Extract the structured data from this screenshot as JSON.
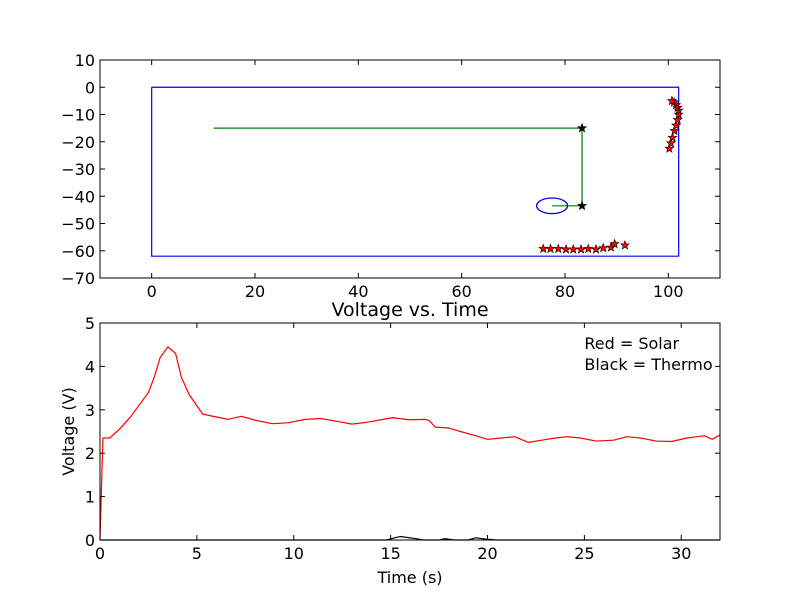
{
  "chart_data": [
    {
      "type": "scatter",
      "title": "",
      "xlabel": "",
      "ylabel": "",
      "xlim": [
        -10,
        110
      ],
      "ylim": [
        -70,
        10
      ],
      "xticks": [
        "0",
        "20",
        "40",
        "60",
        "80",
        "100"
      ],
      "yticks": [
        "10",
        "0",
        "−10",
        "−20",
        "−30",
        "−40",
        "−50",
        "−60",
        "−70"
      ],
      "xtick_values": [
        0,
        20,
        40,
        60,
        80,
        100
      ],
      "ytick_values": [
        10,
        0,
        -10,
        -20,
        -30,
        -40,
        -50,
        -60,
        -70
      ],
      "boundary": {
        "x": [
          0,
          102,
          102,
          0,
          0
        ],
        "y": [
          0,
          0,
          -62,
          -62,
          0
        ],
        "color": "#0000ff"
      },
      "path": {
        "x": [
          12,
          83.3,
          83.3,
          77.5
        ],
        "y": [
          -15,
          -15,
          -43.5,
          -43.5
        ],
        "color": "#008000"
      },
      "path_markers": {
        "x": [
          83.3,
          83.3
        ],
        "y": [
          -15,
          -43.5
        ],
        "color": "#000000"
      },
      "ellipse": {
        "cx": 77.5,
        "cy": -43.5,
        "rx": 3,
        "ry": 3,
        "color": "#0000ff"
      },
      "stars": {
        "color": "#ff0000",
        "x": [
          75.8,
          77.2,
          78.7,
          80.2,
          81.6,
          83.1,
          84.5,
          86.0,
          87.4,
          88.9,
          89.6,
          91.6,
          100.2,
          100.5,
          100.8,
          101.2,
          101.5,
          101.8,
          102.0,
          102.0,
          101.8,
          101.5,
          101.1,
          100.7
        ],
        "y": [
          -59.3,
          -59.3,
          -59.3,
          -59.5,
          -59.5,
          -59.5,
          -59.3,
          -59.5,
          -59.0,
          -58.8,
          -57.5,
          -58.0,
          -22.5,
          -20.5,
          -18.5,
          -16.0,
          -14.0,
          -12.0,
          -10.0,
          -8.5,
          -7.5,
          -6.5,
          -5.5,
          -5.0
        ]
      }
    },
    {
      "type": "line",
      "title": "Voltage vs. Time",
      "xlabel": "Time (s)",
      "ylabel": "Voltage (V)",
      "xlim": [
        0,
        32
      ],
      "ylim": [
        0,
        5
      ],
      "xticks": [
        "0",
        "5",
        "10",
        "15",
        "20",
        "25",
        "30"
      ],
      "yticks": [
        "0",
        "1",
        "2",
        "3",
        "4",
        "5"
      ],
      "xtick_values": [
        0,
        5,
        10,
        15,
        20,
        25,
        30
      ],
      "ytick_values": [
        0,
        1,
        2,
        3,
        4,
        5
      ],
      "annotations": [
        "Red = Solar",
        "Black = Thermo"
      ],
      "series": [
        {
          "color": "#ff0000",
          "x": [
            0,
            0.15,
            0.5,
            1.0,
            1.6,
            2.5,
            2.8,
            3.1,
            3.5,
            3.9,
            4.2,
            4.6,
            5.3,
            6.6,
            7.3,
            8.1,
            8.9,
            9.7,
            10.6,
            11.4,
            12.4,
            13.0,
            13.9,
            14.6,
            15.1,
            15.9,
            16.8,
            17.0,
            17.3,
            18.0,
            18.6,
            19.4,
            20.0,
            20.7,
            21.4,
            22.1,
            22.8,
            23.5,
            24.1,
            24.8,
            25.6,
            26.5,
            27.2,
            27.9,
            28.7,
            29.5,
            30.3,
            30.8,
            31.2,
            31.6,
            32.0
          ],
          "y": [
            0,
            2.35,
            2.35,
            2.55,
            2.85,
            3.4,
            3.75,
            4.2,
            4.45,
            4.3,
            3.75,
            3.35,
            2.9,
            2.78,
            2.85,
            2.75,
            2.68,
            2.7,
            2.78,
            2.8,
            2.72,
            2.67,
            2.72,
            2.78,
            2.82,
            2.77,
            2.78,
            2.75,
            2.6,
            2.58,
            2.5,
            2.4,
            2.32,
            2.35,
            2.38,
            2.25,
            2.3,
            2.35,
            2.38,
            2.35,
            2.28,
            2.3,
            2.38,
            2.35,
            2.28,
            2.27,
            2.35,
            2.38,
            2.4,
            2.32,
            2.42
          ]
        },
        {
          "color": "#000000",
          "x": [
            0,
            14.8,
            15.2,
            15.5,
            16.3,
            16.7,
            17.5,
            17.8,
            18.3,
            19.0,
            19.4,
            19.9,
            20.5,
            32
          ],
          "y": [
            0,
            0,
            0.05,
            0.08,
            0.03,
            0,
            0,
            0.03,
            0,
            0,
            0.05,
            0.02,
            0,
            0
          ]
        }
      ]
    }
  ]
}
